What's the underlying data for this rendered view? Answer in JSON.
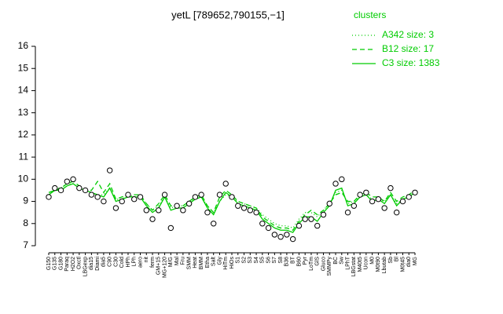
{
  "chart_data": {
    "type": "line",
    "title": "yetL [789652,790155,−1]",
    "legend_title": "clusters",
    "legend": "top-right",
    "categories": [
      "G150",
      "G135",
      "G180",
      "Paraq",
      "H2O2",
      "Oxctl",
      "LBGexp",
      "dia15",
      "Diami",
      "dia5",
      "C90",
      "C30",
      "Cold",
      "HPh",
      "LPh",
      "aero",
      "nit",
      "ferm",
      "GM+15",
      "MG+120",
      "M/G",
      "Mal",
      "Fru",
      "SMM",
      "Heat",
      "BMM",
      "Etha",
      "Salt",
      "Gly",
      "HiTm",
      "HiOs",
      "S1",
      "S2",
      "S3",
      "S4",
      "S5",
      "S6",
      "S7",
      "S8",
      "B36",
      "BT",
      "B60",
      "Pyr",
      "LoTm",
      "GlS",
      "Gluco",
      "SMMPy",
      "BC",
      "Sw",
      "LPhT",
      "LBGstat",
      "M40t5",
      "Ucon",
      "M0",
      "M0t90",
      "Lbutab",
      "Sb",
      "Bl",
      "M0t45",
      "dia0",
      "MG"
    ],
    "series": [
      {
        "name": "A342 size: 3",
        "color": "#00cc00",
        "style": "dotted",
        "values": [
          9.3,
          9.6,
          9.6,
          9.8,
          9.8,
          9.6,
          9.5,
          9.4,
          9.3,
          9.3,
          9.6,
          9.1,
          9.1,
          9.3,
          9.2,
          9.2,
          8.9,
          8.6,
          8.8,
          9.2,
          8.7,
          8.8,
          8.8,
          9.0,
          9.1,
          9.2,
          8.8,
          8.5,
          9.0,
          9.3,
          9.2,
          9.0,
          8.9,
          8.8,
          8.7,
          8.4,
          8.2,
          8.0,
          7.9,
          7.9,
          7.8,
          8.2,
          8.5,
          8.5,
          8.3,
          8.6,
          8.9,
          9.4,
          9.5,
          8.9,
          9.0,
          9.2,
          9.3,
          9.1,
          9.1,
          9.0,
          9.3,
          8.9,
          9.1,
          9.2,
          9.4
        ]
      },
      {
        "name": "B12 size: 17",
        "color": "#00cc00",
        "style": "dashed",
        "values": [
          9.4,
          9.5,
          9.6,
          9.8,
          9.9,
          9.7,
          9.5,
          9.5,
          9.9,
          9.4,
          9.8,
          9.1,
          9.2,
          9.3,
          9.3,
          9.3,
          8.9,
          8.6,
          8.9,
          9.3,
          8.8,
          8.8,
          8.8,
          9.0,
          9.2,
          9.3,
          8.8,
          8.5,
          9.2,
          9.5,
          9.3,
          9.0,
          8.9,
          8.8,
          8.7,
          8.3,
          8.1,
          7.9,
          7.8,
          7.8,
          7.7,
          8.1,
          8.4,
          8.6,
          8.4,
          8.6,
          8.9,
          9.3,
          9.4,
          9.0,
          9.0,
          9.3,
          9.4,
          9.2,
          9.2,
          9.0,
          9.4,
          9.0,
          9.2,
          9.3,
          9.5
        ]
      },
      {
        "name": "C3 size: 1383",
        "color": "#00cc00",
        "style": "solid",
        "values": [
          9.3,
          9.5,
          9.5,
          9.7,
          9.8,
          9.6,
          9.5,
          9.4,
          9.3,
          9.2,
          9.6,
          9.0,
          9.1,
          9.2,
          9.2,
          9.2,
          8.8,
          8.5,
          8.7,
          9.2,
          8.6,
          8.7,
          8.7,
          8.9,
          9.1,
          9.2,
          8.7,
          8.4,
          9.0,
          9.4,
          9.2,
          8.9,
          8.8,
          8.7,
          8.6,
          8.2,
          8.0,
          7.8,
          7.7,
          7.7,
          7.6,
          8.0,
          8.3,
          8.3,
          8.1,
          8.5,
          8.8,
          9.5,
          9.6,
          8.8,
          8.9,
          9.2,
          9.3,
          9.0,
          9.1,
          8.9,
          9.3,
          8.8,
          9.1,
          9.2,
          9.4
        ]
      }
    ],
    "points": {
      "values": [
        9.2,
        9.6,
        9.5,
        9.9,
        10.0,
        9.6,
        9.5,
        9.3,
        9.2,
        9.0,
        10.4,
        8.7,
        9.0,
        9.3,
        9.1,
        9.2,
        8.6,
        8.2,
        8.6,
        9.3,
        7.8,
        8.8,
        8.6,
        8.9,
        9.2,
        9.3,
        8.5,
        8.0,
        9.3,
        9.8,
        9.2,
        8.8,
        8.7,
        8.6,
        8.5,
        8.0,
        7.8,
        7.5,
        7.4,
        7.5,
        7.3,
        7.9,
        8.2,
        8.2,
        7.9,
        8.4,
        8.9,
        9.8,
        10.0,
        8.5,
        8.8,
        9.3,
        9.4,
        9.0,
        9.1,
        8.7,
        9.6,
        8.5,
        9.0,
        9.2,
        9.4
      ]
    },
    "ylim": [
      7,
      16
    ],
    "yticks": [
      7,
      8,
      9,
      10,
      11,
      12,
      13,
      14,
      15,
      16
    ]
  }
}
